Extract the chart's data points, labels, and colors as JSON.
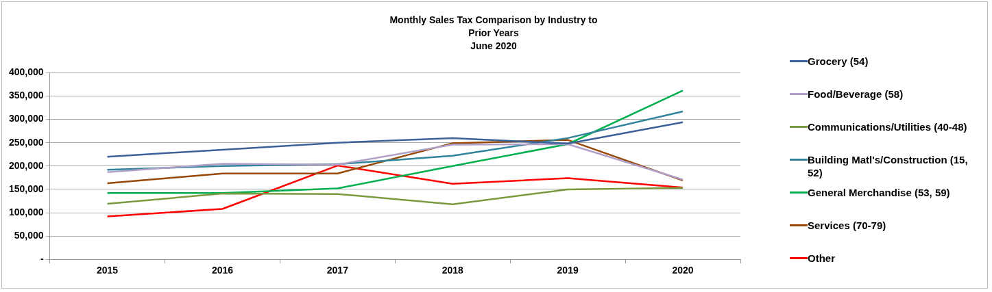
{
  "chart_data": {
    "type": "line",
    "title": "Monthly Sales Tax Comparison by Industry to Prior Years",
    "subtitle": "June 2020",
    "categories": [
      "2015",
      "2016",
      "2017",
      "2018",
      "2019",
      "2020"
    ],
    "series": [
      {
        "name": "Grocery (54)",
        "color": "#3c6198",
        "values": [
          220000,
          235000,
          250000,
          260000,
          248000,
          294000
        ]
      },
      {
        "name": "Food/Beverage (58)",
        "color": "#b0a0c8",
        "values": [
          187000,
          205000,
          203000,
          246000,
          247000,
          171000
        ]
      },
      {
        "name": "Communications/Utilities (40-48)",
        "color": "#7a9a3f",
        "values": [
          119000,
          141000,
          140000,
          118000,
          150000,
          153000
        ]
      },
      {
        "name": "Building Matl's/Construction (15, 52)",
        "color": "#31849b",
        "values": [
          192000,
          200000,
          204000,
          222000,
          260000,
          317000
        ]
      },
      {
        "name": "General Merchandise (53, 59)",
        "color": "#00b050",
        "values": [
          142000,
          142000,
          152000,
          200000,
          247000,
          362000
        ]
      },
      {
        "name": "Services (70-79)",
        "color": "#974706",
        "values": [
          163000,
          184000,
          184000,
          249000,
          256000,
          169000
        ]
      },
      {
        "name": "Other",
        "color": "#ff0000",
        "values": [
          92000,
          108000,
          201000,
          162000,
          174000,
          154000
        ]
      }
    ],
    "ylim": [
      0,
      400000
    ],
    "yticks": [
      {
        "value": 0,
        "label": "-"
      },
      {
        "value": 50000,
        "label": "50,000"
      },
      {
        "value": 100000,
        "label": "100,000"
      },
      {
        "value": 150000,
        "label": "150,000"
      },
      {
        "value": 200000,
        "label": "200,000"
      },
      {
        "value": 250000,
        "label": "250,000"
      },
      {
        "value": 300000,
        "label": "300,000"
      },
      {
        "value": 350000,
        "label": "350,000"
      },
      {
        "value": 400000,
        "label": "400,000"
      }
    ],
    "grid": "y",
    "legend": "right",
    "marker": "none",
    "line_style": "solid"
  }
}
